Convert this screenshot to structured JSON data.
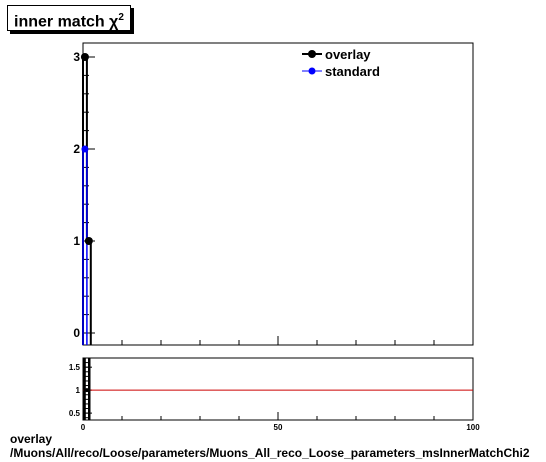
{
  "header": {
    "title": "inner match χ",
    "title_sup": "2"
  },
  "footer": {
    "line1": "overlay",
    "line2": "/Muons/All/reco/Loose/parameters/Muons_All_reco_Loose_parameters_msInnerMatchChi2"
  },
  "chart_data": [
    {
      "type": "histogram",
      "title": "inner match χ2",
      "xlim": [
        0,
        100
      ],
      "ylim": [
        0,
        3.1
      ],
      "yticks": [
        0,
        1,
        2,
        3
      ],
      "legend": {
        "placement": "top-right"
      },
      "series": [
        {
          "name": "overlay",
          "color": "#000000",
          "points": [
            {
              "x": 0.5,
              "y": 3
            },
            {
              "x": 1.5,
              "y": 1
            }
          ]
        },
        {
          "name": "standard",
          "color": "#0000ff",
          "points": [
            {
              "x": 0.5,
              "y": 2
            }
          ]
        }
      ]
    },
    {
      "type": "line",
      "xlim": [
        0,
        100
      ],
      "ylim": [
        0.35,
        1.7
      ],
      "xticks": [
        0,
        50,
        100
      ],
      "yticks": [
        0.5,
        1,
        1.5
      ],
      "ytick_labels": [
        "0.5",
        "1",
        "1.5"
      ],
      "reference_line": {
        "y": 1,
        "color": "#cc0000"
      }
    }
  ]
}
